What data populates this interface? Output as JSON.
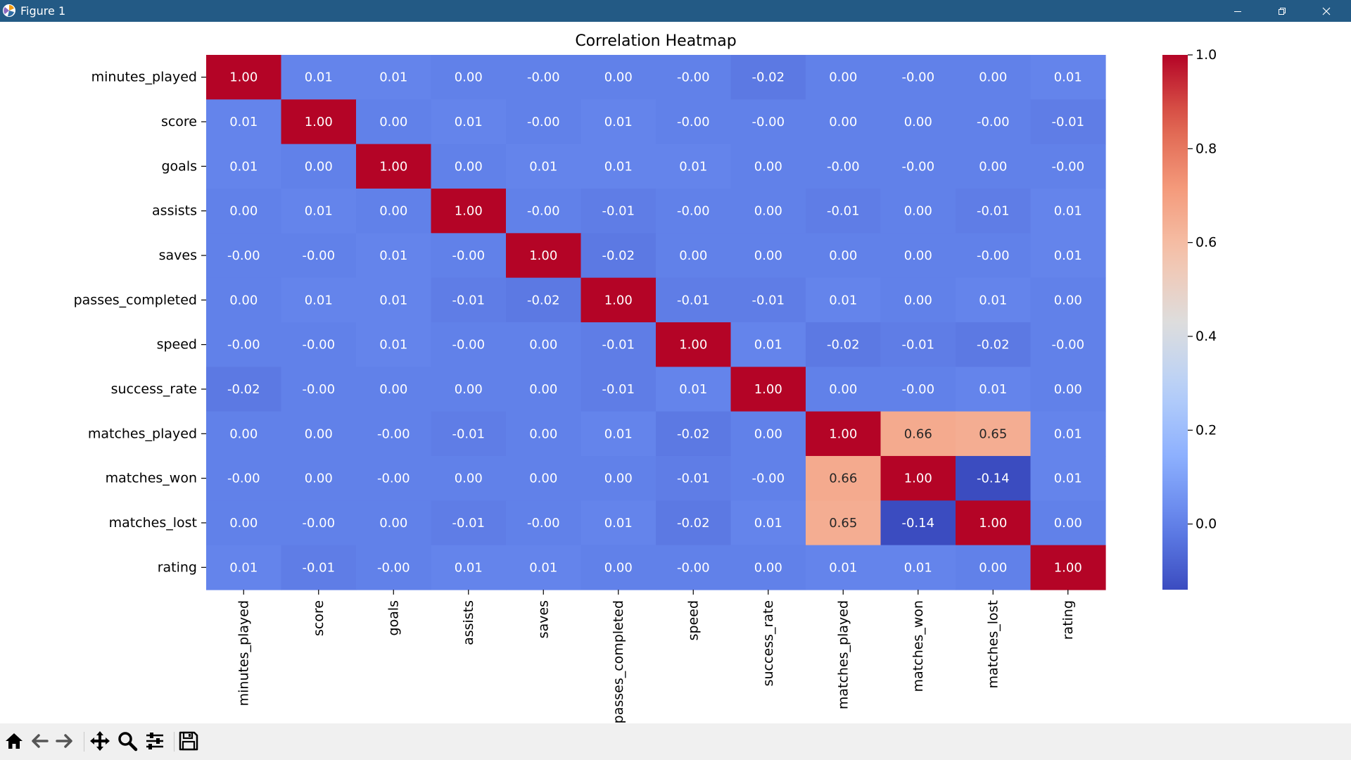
{
  "window": {
    "title": "Figure 1",
    "controls": [
      "minimize-icon",
      "restore-icon",
      "close-icon"
    ]
  },
  "toolbar": {
    "buttons": [
      "home-icon",
      "back-arrow-icon",
      "forward-arrow-icon",
      "pan-icon",
      "zoom-icon",
      "configure-subplots-icon",
      "save-icon"
    ]
  },
  "chart_data": {
    "type": "heatmap",
    "title": "Correlation Heatmap",
    "xlabel": "",
    "ylabel": "",
    "variables": [
      "minutes_played",
      "score",
      "goals",
      "assists",
      "saves",
      "passes_completed",
      "speed",
      "success_rate",
      "matches_played",
      "matches_won",
      "matches_lost",
      "rating"
    ],
    "labels": [
      [
        "1.00",
        "0.01",
        "0.01",
        "0.00",
        "-0.00",
        "0.00",
        "-0.00",
        "-0.02",
        "0.00",
        "-0.00",
        "0.00",
        "0.01"
      ],
      [
        "0.01",
        "1.00",
        "0.00",
        "0.01",
        "-0.00",
        "0.01",
        "-0.00",
        "-0.00",
        "0.00",
        "0.00",
        "-0.00",
        "-0.01"
      ],
      [
        "0.01",
        "0.00",
        "1.00",
        "0.00",
        "0.01",
        "0.01",
        "0.01",
        "0.00",
        "-0.00",
        "-0.00",
        "0.00",
        "-0.00"
      ],
      [
        "0.00",
        "0.01",
        "0.00",
        "1.00",
        "-0.00",
        "-0.01",
        "-0.00",
        "0.00",
        "-0.01",
        "0.00",
        "-0.01",
        "0.01"
      ],
      [
        "-0.00",
        "-0.00",
        "0.01",
        "-0.00",
        "1.00",
        "-0.02",
        "0.00",
        "0.00",
        "0.00",
        "0.00",
        "-0.00",
        "0.01"
      ],
      [
        "0.00",
        "0.01",
        "0.01",
        "-0.01",
        "-0.02",
        "1.00",
        "-0.01",
        "-0.01",
        "0.01",
        "0.00",
        "0.01",
        "0.00"
      ],
      [
        "-0.00",
        "-0.00",
        "0.01",
        "-0.00",
        "0.00",
        "-0.01",
        "1.00",
        "0.01",
        "-0.02",
        "-0.01",
        "-0.02",
        "-0.00"
      ],
      [
        "-0.02",
        "-0.00",
        "0.00",
        "0.00",
        "0.00",
        "-0.01",
        "0.01",
        "1.00",
        "0.00",
        "-0.00",
        "0.01",
        "0.00"
      ],
      [
        "0.00",
        "0.00",
        "-0.00",
        "-0.01",
        "0.00",
        "0.01",
        "-0.02",
        "0.00",
        "1.00",
        "0.66",
        "0.65",
        "0.01"
      ],
      [
        "-0.00",
        "0.00",
        "-0.00",
        "0.00",
        "0.00",
        "0.00",
        "-0.01",
        "-0.00",
        "0.66",
        "1.00",
        "-0.14",
        "0.01"
      ],
      [
        "0.00",
        "-0.00",
        "0.00",
        "-0.01",
        "-0.00",
        "0.01",
        "-0.02",
        "0.01",
        "0.65",
        "-0.14",
        "1.00",
        "0.00"
      ],
      [
        "0.01",
        "-0.01",
        "-0.00",
        "0.01",
        "0.01",
        "0.00",
        "-0.00",
        "0.00",
        "0.01",
        "0.01",
        "0.00",
        "1.00"
      ]
    ],
    "colorbar": {
      "colormap": "coolwarm",
      "min": -0.14,
      "max": 1.0,
      "ticks": [
        "0.0",
        "0.2",
        "0.4",
        "0.6",
        "0.8",
        "1.0"
      ],
      "tick_values": [
        0.0,
        0.2,
        0.4,
        0.6,
        0.8,
        1.0
      ]
    },
    "grid": false
  }
}
